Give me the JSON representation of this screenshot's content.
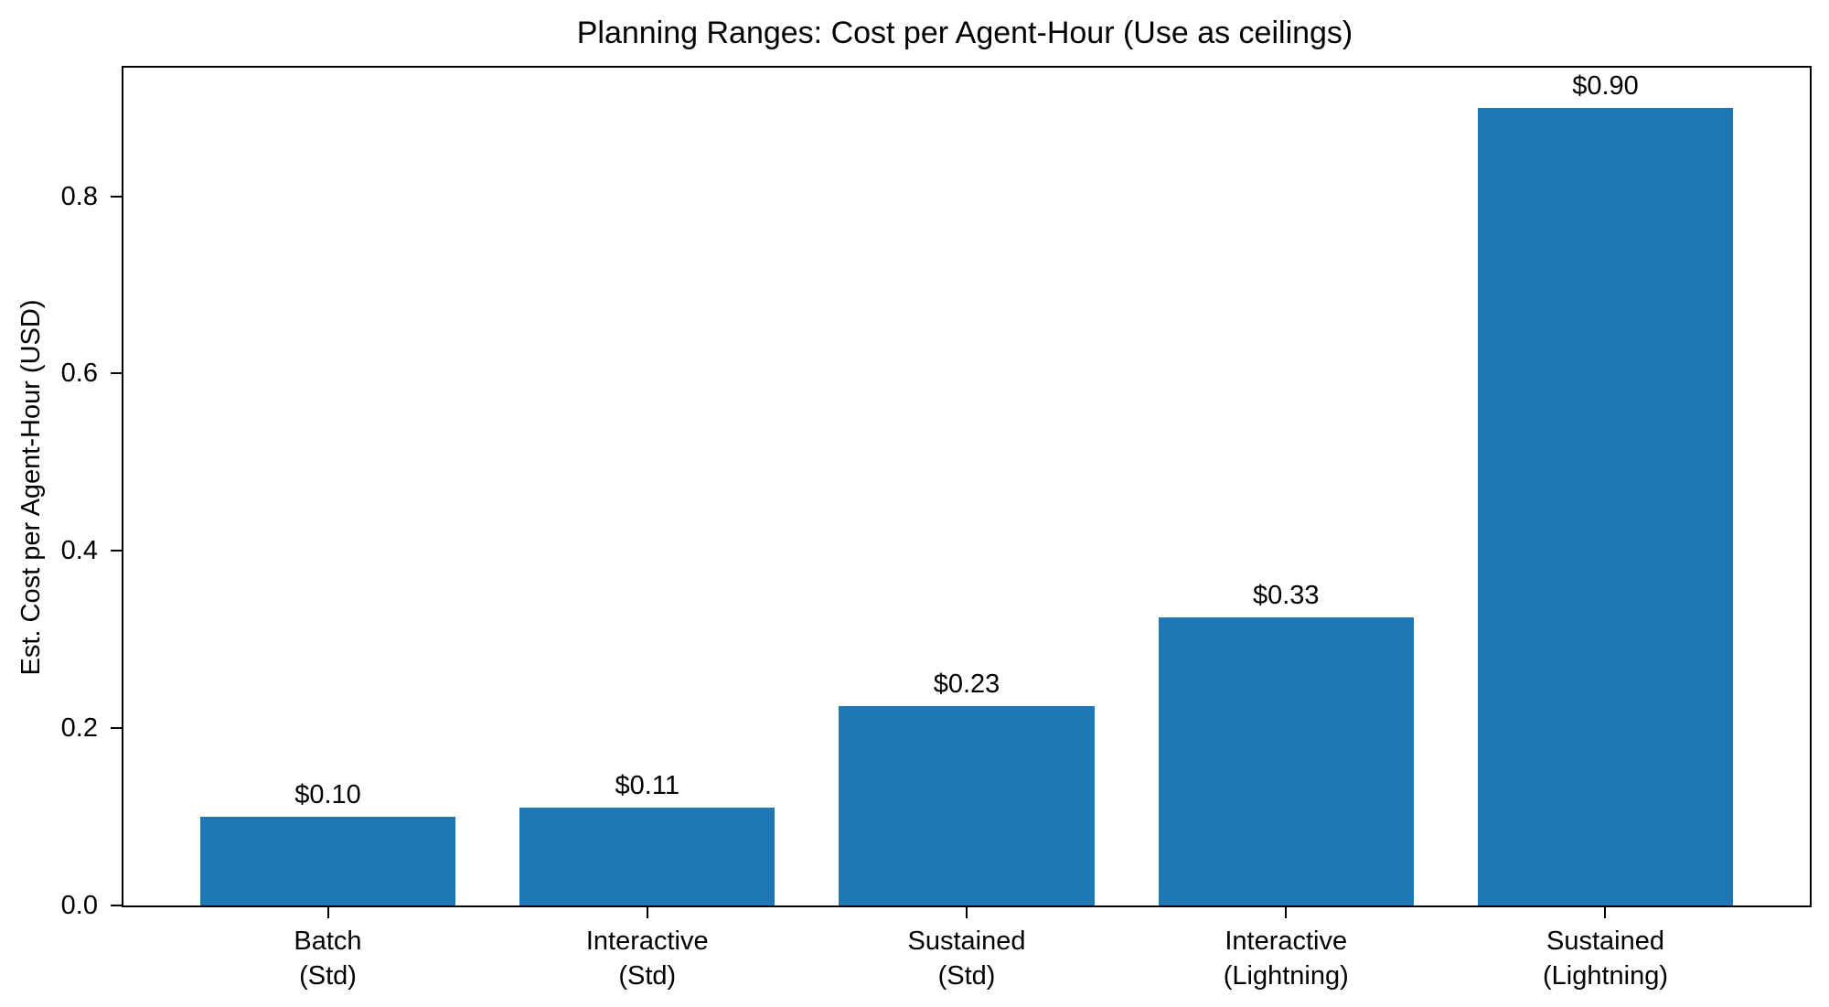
{
  "chart_data": {
    "type": "bar",
    "title": "Planning Ranges: Cost per Agent-Hour (Use as ceilings)",
    "xlabel": "",
    "ylabel": "Est. Cost per Agent-Hour (USD)",
    "categories": [
      {
        "line1": "Batch",
        "line2": "(Std)"
      },
      {
        "line1": "Interactive",
        "line2": "(Std)"
      },
      {
        "line1": "Sustained",
        "line2": "(Std)"
      },
      {
        "line1": "Interactive",
        "line2": "(Lightning)"
      },
      {
        "line1": "Sustained",
        "line2": "(Lightning)"
      }
    ],
    "values": [
      0.1,
      0.11,
      0.225,
      0.325,
      0.9
    ],
    "bar_labels": [
      "$0.10",
      "$0.11",
      "$0.23",
      "$0.33",
      "$0.90"
    ],
    "ytick_values": [
      0.0,
      0.2,
      0.4,
      0.6,
      0.8
    ],
    "ytick_labels": [
      "0.0",
      "0.2",
      "0.4",
      "0.6",
      "0.8"
    ],
    "ylim": [
      0,
      0.945
    ],
    "bar_color": "#1f77b4",
    "axis_color": "#000000",
    "grid": "off",
    "legend": "none",
    "bar_width_fraction": 0.8,
    "x_margin": 0.64
  }
}
